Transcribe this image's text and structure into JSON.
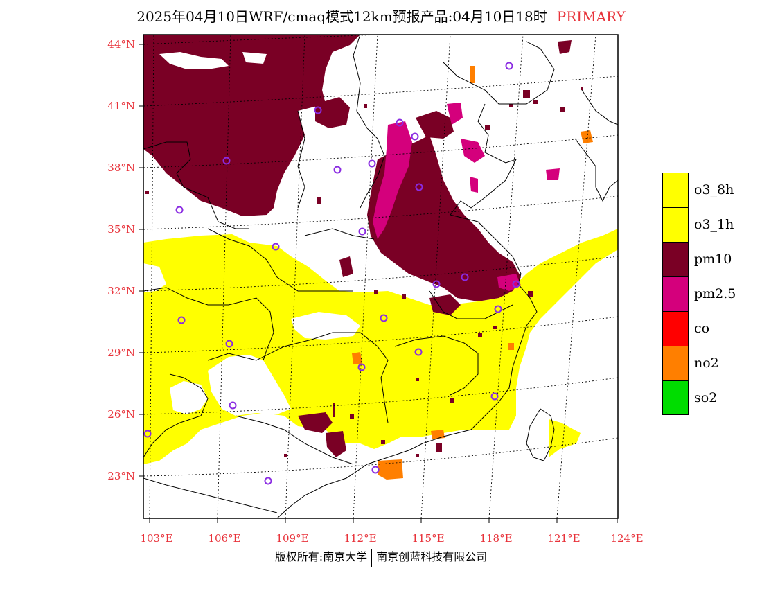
{
  "header": {
    "title": "2025年04月10日WRF/cmaq模式12km预报产品:04月10日18时",
    "tag": "PRIMARY"
  },
  "axes": {
    "lat_labels": [
      "44°N",
      "41°N",
      "38°N",
      "35°N",
      "32°N",
      "29°N",
      "26°N",
      "23°N"
    ],
    "lon_labels": [
      "103°E",
      "106°E",
      "109°E",
      "112°E",
      "115°E",
      "118°E",
      "121°E",
      "124°E"
    ]
  },
  "legend": {
    "items": [
      {
        "label": "o3_8h",
        "color": "#ffff00"
      },
      {
        "label": "o3_1h",
        "color": "#ffff00"
      },
      {
        "label": "pm10",
        "color": "#7a0025"
      },
      {
        "label": "pm2.5",
        "color": "#d4007c"
      },
      {
        "label": "co",
        "color": "#ff0000"
      },
      {
        "label": "no2",
        "color": "#ff7f00"
      },
      {
        "label": "so2",
        "color": "#00dd00"
      }
    ]
  },
  "colors": {
    "o3": "#ffff00",
    "pm10": "#7a0025",
    "pm25": "#d4007c",
    "no2": "#ff7f00",
    "station_marker": "#8a2be2",
    "axis_label": "#e8323a"
  },
  "footer": {
    "left": "版权所有:南京大学",
    "right": "南京创蓝科技有限公司"
  }
}
